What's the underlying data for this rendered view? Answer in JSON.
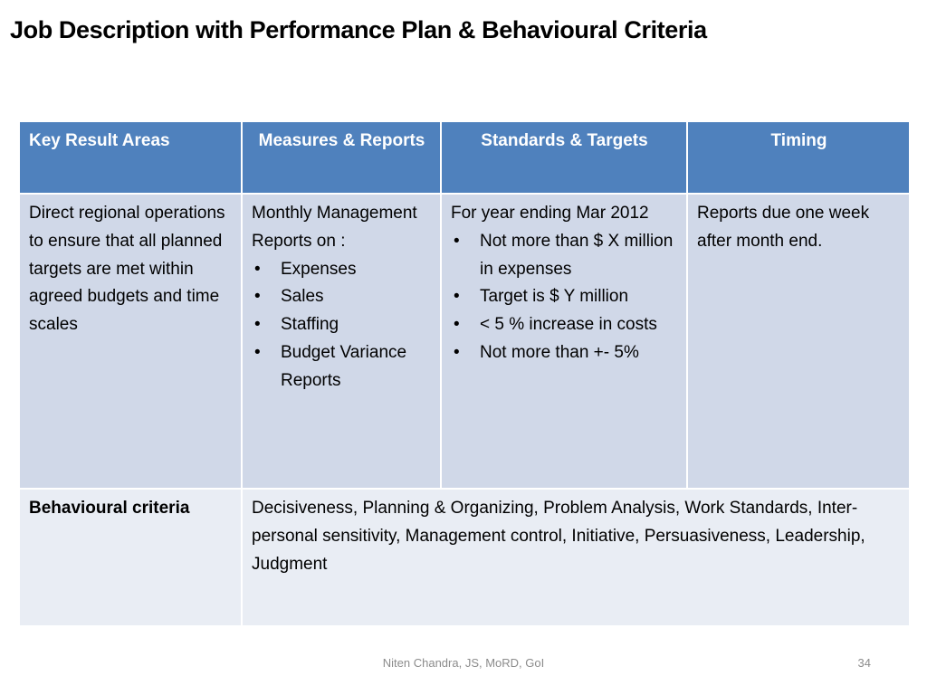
{
  "slide": {
    "title": "Job Description with Performance Plan & Behavioural Criteria"
  },
  "table": {
    "headers": [
      "Key Result Areas",
      "Measures & Reports",
      "Standards & Targets",
      "Timing"
    ],
    "kra_row": {
      "key_result_area": "Direct regional operations to ensure that all planned targets are met within agreed budgets and time scales",
      "measures_intro": "Monthly Management Reports on :",
      "measures_items": [
        "Expenses",
        "Sales",
        "Staffing",
        "Budget Variance Reports"
      ],
      "standards_intro": "For year ending Mar 2012",
      "standards_items": [
        "Not more than $ X million in expenses",
        "Target is $ Y million",
        "< 5 % increase in costs",
        "Not more than +- 5%"
      ],
      "timing": "Reports due one week after month end."
    },
    "behavioural_row": {
      "label": "Behavioural criteria",
      "criteria": "Decisiveness, Planning & Organizing, Problem Analysis, Work Standards, Inter-personal sensitivity, Management control, Initiative, Persuasiveness, Leadership, Judgment"
    }
  },
  "footer": {
    "author": "Niten Chandra, JS, MoRD, GoI",
    "page_number": "34"
  },
  "colors": {
    "header_fill": "#4f81bd",
    "row_fill_dark": "#d0d8e8",
    "row_fill_light": "#e9edf4",
    "footer_text": "#8c8c8c"
  },
  "icons": {
    "bullet": "•"
  }
}
